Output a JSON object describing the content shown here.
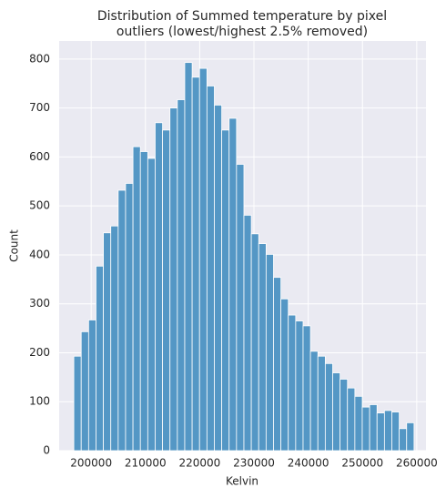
{
  "chart_data": {
    "type": "histogram",
    "title": [
      "Distribution of Summed temperature by pixel",
      "outliers (lowest/highest 2.5% removed)"
    ],
    "xlabel": "Kelvin",
    "ylabel": "Count",
    "bins": [
      196800,
      198163,
      199526,
      200889,
      202252,
      203615,
      204978,
      206341,
      207704,
      209067,
      210430,
      211793,
      213156,
      214519,
      215882,
      217245,
      218608,
      219971,
      221334,
      222697,
      224060,
      225423,
      226786,
      228149,
      229512,
      230875,
      232238,
      233601,
      234964,
      236327,
      237690,
      239053,
      240416,
      241779,
      243142,
      244505,
      245868,
      247231,
      248594,
      249957,
      251320,
      252683,
      254046,
      255409,
      256772,
      258135,
      259498
    ],
    "values": [
      193,
      243,
      267,
      377,
      445,
      459,
      532,
      546,
      621,
      611,
      597,
      670,
      655,
      700,
      717,
      793,
      763,
      781,
      745,
      706,
      655,
      679,
      585,
      481,
      443,
      423,
      401,
      354,
      310,
      277,
      265,
      255,
      203,
      193,
      178,
      159,
      146,
      128,
      111,
      89,
      94,
      77,
      82,
      79,
      45,
      57
    ],
    "color": "#5497c5",
    "xlim": [
      194100,
      261700
    ],
    "ylim": [
      0,
      837
    ],
    "xticks": [
      200000,
      210000,
      220000,
      230000,
      240000,
      250000,
      260000
    ],
    "yticks": [
      0,
      100,
      200,
      300,
      400,
      500,
      600,
      700,
      800
    ],
    "grid": true
  }
}
